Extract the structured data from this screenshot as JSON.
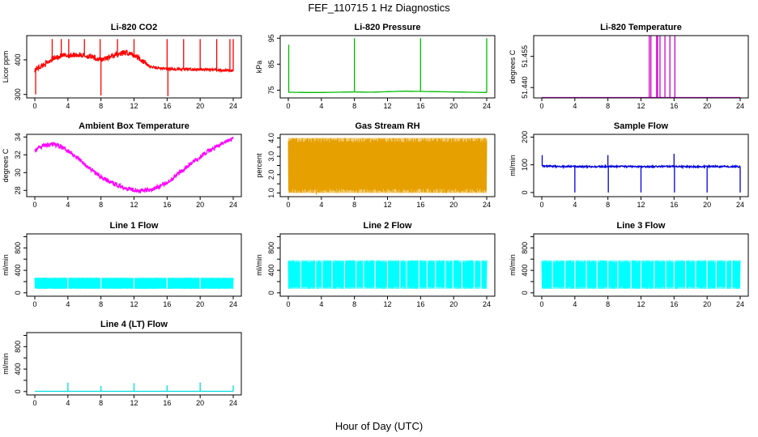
{
  "figure": {
    "title": "FEF_110715  1 Hz Diagnostics",
    "xlabel": "Hour of Day (UTC)"
  },
  "chart_data": [
    {
      "type": "line",
      "title": "Li-820 CO2",
      "ylabel": "Licor ppm",
      "color": "#ff0000",
      "xlim": [
        0,
        24
      ],
      "ylim": [
        290,
        470
      ],
      "xticks": [
        0,
        4,
        8,
        12,
        16,
        20,
        24
      ],
      "yticks": [
        300,
        400
      ],
      "series": [
        {
          "x": [
            0,
            0.5,
            1,
            1.5,
            2,
            2.5,
            3,
            3.5,
            4,
            4.5,
            5,
            5.5,
            6,
            6.5,
            7,
            7.5,
            8,
            8.5,
            9,
            9.5,
            10,
            10.5,
            11,
            11.5,
            12,
            12.5,
            13,
            13.5,
            14,
            15,
            16,
            17,
            18,
            19,
            20,
            21,
            22,
            23,
            24
          ],
          "values": [
            372,
            378,
            385,
            392,
            402,
            406,
            410,
            412,
            412,
            414,
            415,
            414,
            412,
            410,
            407,
            403,
            400,
            405,
            408,
            412,
            416,
            418,
            420,
            418,
            414,
            408,
            398,
            388,
            380,
            376,
            374,
            373,
            373,
            372,
            372,
            372,
            371,
            370,
            368
          ]
        }
      ],
      "spikes": [
        {
          "x": 0.1,
          "y": 300
        },
        {
          "x": 2.1,
          "y": 460
        },
        {
          "x": 3.2,
          "y": 460
        },
        {
          "x": 4.1,
          "y": 460
        },
        {
          "x": 6.0,
          "y": 460
        },
        {
          "x": 7.9,
          "y": 460
        },
        {
          "x": 8.0,
          "y": 297
        },
        {
          "x": 10.0,
          "y": 460
        },
        {
          "x": 12.0,
          "y": 460
        },
        {
          "x": 16.0,
          "y": 460
        },
        {
          "x": 16.1,
          "y": 295
        },
        {
          "x": 18.0,
          "y": 460
        },
        {
          "x": 20.0,
          "y": 460
        },
        {
          "x": 22.0,
          "y": 460
        },
        {
          "x": 23.6,
          "y": 460
        },
        {
          "x": 24.0,
          "y": 460
        }
      ]
    },
    {
      "type": "line",
      "title": "Li-820 Pressure",
      "ylabel": "kPa",
      "color": "#00bb00",
      "xlim": [
        0,
        24
      ],
      "ylim": [
        72,
        96
      ],
      "xticks": [
        0,
        4,
        8,
        12,
        16,
        20,
        24
      ],
      "yticks": [
        75,
        85,
        95
      ],
      "series": [
        {
          "x": [
            0,
            2,
            4,
            6,
            8,
            10,
            12,
            14,
            16,
            18,
            20,
            22,
            24
          ],
          "values": [
            74.2,
            74.1,
            74.1,
            74.2,
            74.3,
            74.2,
            74.4,
            74.6,
            74.5,
            74.4,
            74.3,
            74.2,
            74.1
          ]
        }
      ],
      "spikes": [
        {
          "x": 0.05,
          "y": 92.5
        },
        {
          "x": 8.0,
          "y": 95
        },
        {
          "x": 16.0,
          "y": 95
        },
        {
          "x": 24.0,
          "y": 95
        }
      ]
    },
    {
      "type": "line",
      "title": "Li-820 Temperature",
      "ylabel": "degrees C",
      "color": "#cc00cc",
      "xlim": [
        0,
        24
      ],
      "ylim": [
        51.435,
        51.465
      ],
      "xticks": [
        0,
        4,
        8,
        12,
        16,
        20,
        24
      ],
      "yticks": [
        51.44,
        51.455
      ],
      "ytick_labels": [
        "51.440",
        "51.455"
      ],
      "series": [
        {
          "x": [
            0,
            24
          ],
          "values": [
            51.4352,
            51.4352
          ]
        }
      ],
      "spikes": [
        {
          "x": 13.0,
          "y": 51.465
        },
        {
          "x": 13.2,
          "y": 51.465
        },
        {
          "x": 13.9,
          "y": 51.465
        },
        {
          "x": 14.0,
          "y": 51.465
        },
        {
          "x": 14.3,
          "y": 51.465
        },
        {
          "x": 14.9,
          "y": 51.465
        },
        {
          "x": 15.5,
          "y": 51.465
        },
        {
          "x": 16.1,
          "y": 51.465
        }
      ]
    },
    {
      "type": "line",
      "title": "Ambient Box Temperature",
      "ylabel": "degrees C",
      "color": "#ff00ff",
      "xlim": [
        0,
        24
      ],
      "ylim": [
        27.3,
        34.3
      ],
      "xticks": [
        0,
        4,
        8,
        12,
        16,
        20,
        24
      ],
      "yticks": [
        28,
        30,
        32,
        34
      ],
      "series": [
        {
          "x": [
            0,
            1,
            2,
            3,
            4,
            5,
            6,
            7,
            8,
            9,
            10,
            11,
            12,
            13,
            14,
            15,
            16,
            17,
            18,
            19,
            20,
            21,
            22,
            23,
            24
          ],
          "values": [
            32.5,
            33.0,
            33.2,
            33.0,
            32.5,
            31.8,
            31.0,
            30.2,
            29.5,
            29.0,
            28.6,
            28.3,
            28.1,
            28.0,
            28.1,
            28.4,
            28.9,
            29.6,
            30.4,
            31.1,
            31.8,
            32.4,
            32.9,
            33.4,
            33.8
          ]
        }
      ]
    },
    {
      "type": "line",
      "title": "Gas Stream RH",
      "ylabel": "percent",
      "color": "#e6a000",
      "xlim": [
        0,
        24
      ],
      "ylim": [
        0.8,
        4.2
      ],
      "xticks": [
        0,
        4,
        8,
        12,
        16,
        20,
        24
      ],
      "yticks": [
        1.0,
        1.5,
        2.0,
        2.5,
        3.0,
        3.5,
        4.0
      ],
      "ytick_labels": [
        "1.0",
        "",
        "2.0",
        "",
        "3.0",
        "",
        "4.0"
      ],
      "band": {
        "low": 1.0,
        "high": 4.0
      },
      "dips": [
        {
          "x": 0.5,
          "y": 1.5
        },
        {
          "x": 1.0,
          "y": 1.0
        },
        {
          "x": 1.7,
          "y": 1.4
        },
        {
          "x": 2.3,
          "y": 1.1
        },
        {
          "x": 3.0,
          "y": 1.0
        },
        {
          "x": 3.4,
          "y": 0.9
        },
        {
          "x": 4.2,
          "y": 1.3
        },
        {
          "x": 5.1,
          "y": 1.6
        },
        {
          "x": 6.0,
          "y": 1.2
        },
        {
          "x": 6.8,
          "y": 1.5
        },
        {
          "x": 7.5,
          "y": 1.4
        },
        {
          "x": 9.0,
          "y": 1.2
        },
        {
          "x": 9.8,
          "y": 1.5
        },
        {
          "x": 11.0,
          "y": 1.1
        },
        {
          "x": 11.6,
          "y": 1.4
        },
        {
          "x": 12.7,
          "y": 1.3
        },
        {
          "x": 13.4,
          "y": 1.6
        },
        {
          "x": 14.1,
          "y": 1.2
        },
        {
          "x": 15.0,
          "y": 1.0
        },
        {
          "x": 16.5,
          "y": 1.5
        },
        {
          "x": 17.3,
          "y": 1.3
        },
        {
          "x": 18.2,
          "y": 1.0
        },
        {
          "x": 19.1,
          "y": 1.4
        },
        {
          "x": 20.0,
          "y": 1.1
        },
        {
          "x": 21.0,
          "y": 1.5
        },
        {
          "x": 22.2,
          "y": 1.6
        },
        {
          "x": 23.0,
          "y": 1.4
        },
        {
          "x": 23.7,
          "y": 1.2
        }
      ]
    },
    {
      "type": "line",
      "title": "Sample Flow",
      "ylabel": "ml/min",
      "color": "#0000dd",
      "xlim": [
        0,
        24
      ],
      "ylim": [
        -15,
        210
      ],
      "xticks": [
        0,
        4,
        8,
        12,
        16,
        20,
        24
      ],
      "yticks": [
        0,
        100,
        200
      ],
      "series": [
        {
          "x": [
            0,
            2,
            4,
            6,
            8,
            10,
            12,
            14,
            16,
            18,
            20,
            22,
            24
          ],
          "values": [
            95,
            94,
            94,
            93,
            94,
            94,
            93,
            94,
            94,
            93,
            94,
            94,
            93
          ]
        }
      ],
      "spikes": [
        {
          "x": 0.05,
          "y": 135
        },
        {
          "x": 4.0,
          "y": 0
        },
        {
          "x": 8.0,
          "y": 135
        },
        {
          "x": 8.05,
          "y": 0
        },
        {
          "x": 12.0,
          "y": 0
        },
        {
          "x": 16.0,
          "y": 140
        },
        {
          "x": 16.05,
          "y": 0
        },
        {
          "x": 20.0,
          "y": 0
        },
        {
          "x": 24.0,
          "y": 0
        }
      ]
    },
    {
      "type": "line",
      "title": "Line 1 Flow",
      "ylabel": "ml/min",
      "color": "#00ffff",
      "xlim": [
        0,
        24
      ],
      "ylim": [
        -60,
        1050
      ],
      "xticks": [
        0,
        4,
        8,
        12,
        16,
        20,
        24
      ],
      "yticks": [
        0,
        200,
        400,
        600,
        800,
        1000
      ],
      "ytick_labels": [
        "0",
        "",
        "400",
        "",
        "800",
        ""
      ],
      "band": {
        "low": 70,
        "high": 270
      },
      "gaps": [
        4,
        8,
        12,
        16,
        20
      ]
    },
    {
      "type": "line",
      "title": "Line 2 Flow",
      "ylabel": "ml/min",
      "color": "#00ffff",
      "xlim": [
        0,
        24
      ],
      "ylim": [
        -60,
        1050
      ],
      "xticks": [
        0,
        4,
        8,
        12,
        16,
        20,
        24
      ],
      "yticks": [
        0,
        200,
        400,
        600,
        800,
        1000
      ],
      "ytick_labels": [
        "0",
        "",
        "400",
        "",
        "800",
        ""
      ],
      "band": {
        "low": 70,
        "high": 580
      },
      "gaps": [
        1.5,
        3.3,
        4.1,
        5.3,
        6.8,
        8.2,
        9.1,
        10.5,
        12.0,
        13.5,
        14.3,
        15.8,
        16.8,
        17.8,
        19.0,
        19.9,
        21.0,
        22.5,
        23.3
      ]
    },
    {
      "type": "line",
      "title": "Line 3 Flow",
      "ylabel": "ml/min",
      "color": "#00ffff",
      "xlim": [
        0,
        24
      ],
      "ylim": [
        -60,
        1050
      ],
      "xticks": [
        0,
        4,
        8,
        12,
        16,
        20,
        24
      ],
      "yticks": [
        0,
        200,
        400,
        600,
        800,
        1000
      ],
      "ytick_labels": [
        "0",
        "",
        "400",
        "",
        "800",
        ""
      ],
      "band": {
        "low": 70,
        "high": 580
      },
      "gaps": [
        1.3,
        2.8,
        4.0,
        5.4,
        6.7,
        8.0,
        9.2,
        10.8,
        12.0,
        13.6,
        15.0,
        16.0,
        17.4,
        18.6,
        20.0,
        21.1,
        22.3,
        23.0
      ]
    },
    {
      "type": "line",
      "title": "Line 4 (LT) Flow",
      "ylabel": "ml/min",
      "color": "#00dddd",
      "xlim": [
        0,
        24
      ],
      "ylim": [
        -60,
        1050
      ],
      "xticks": [
        0,
        4,
        8,
        12,
        16,
        20,
        24
      ],
      "yticks": [
        0,
        200,
        400,
        600,
        800,
        1000
      ],
      "ytick_labels": [
        "0",
        "",
        "400",
        "",
        "800",
        ""
      ],
      "series": [
        {
          "x": [
            0,
            24
          ],
          "values": [
            5,
            5
          ]
        }
      ],
      "spikes": [
        {
          "x": 4.0,
          "y": 160
        },
        {
          "x": 8.0,
          "y": 100
        },
        {
          "x": 12.0,
          "y": 150
        },
        {
          "x": 16.0,
          "y": 110
        },
        {
          "x": 20.0,
          "y": 160
        },
        {
          "x": 24.0,
          "y": 110
        }
      ]
    }
  ]
}
